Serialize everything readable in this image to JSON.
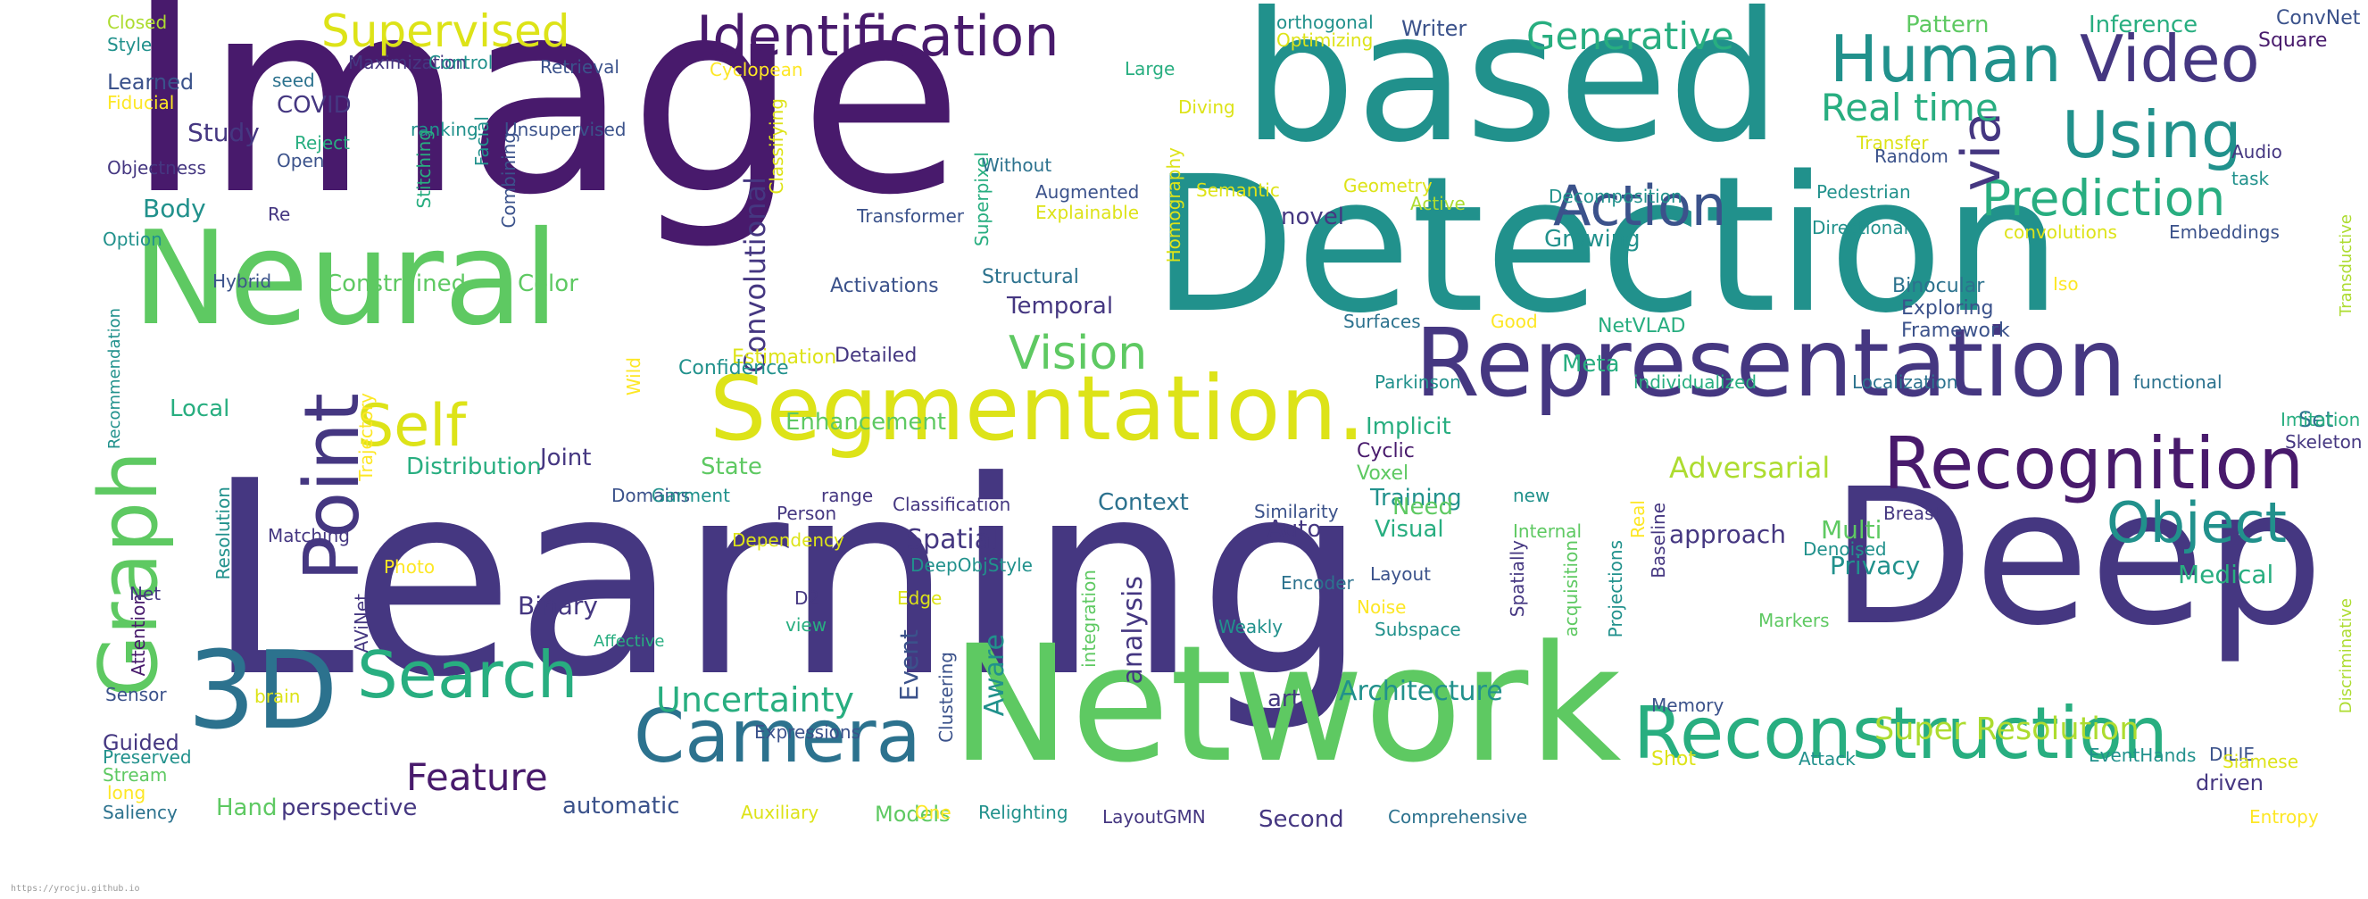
{
  "palette": {
    "p1": "#481a6c",
    "p2": "#453781",
    "p3": "#3b528b",
    "p4": "#2c728e",
    "p5": "#21918c",
    "p6": "#28ae80",
    "p7": "#5ec962",
    "p8": "#addc30",
    "p9": "#dde318",
    "p10": "#fde725"
  },
  "footer": {
    "text": "https://yrocju.github.io"
  },
  "words": [
    {
      "t": "Image",
      "v": false,
      "c": "p1"
    },
    {
      "t": "based",
      "v": false,
      "c": "p5"
    },
    {
      "t": "Detection",
      "v": false,
      "c": "p5"
    },
    {
      "t": "Learning",
      "v": false,
      "c": "p2"
    },
    {
      "t": "Deep",
      "v": false,
      "c": "p2"
    },
    {
      "t": "Network",
      "v": false,
      "c": "p7"
    },
    {
      "t": "Neural",
      "v": false,
      "c": "p7"
    },
    {
      "t": "Representation",
      "v": false,
      "c": "p2"
    },
    {
      "t": "Segmentation.",
      "v": false,
      "c": "p9"
    },
    {
      "t": "Recognition",
      "v": false,
      "c": "p1"
    },
    {
      "t": "Reconstruction",
      "v": false,
      "c": "p6"
    },
    {
      "t": "Human",
      "v": false,
      "c": "p5"
    },
    {
      "t": "Video",
      "v": false,
      "c": "p2"
    },
    {
      "t": "Using",
      "v": false,
      "c": "p5"
    },
    {
      "t": "Identification",
      "v": false,
      "c": "p1"
    },
    {
      "t": "3D",
      "v": false,
      "c": "p4"
    },
    {
      "t": "Graph",
      "v": true,
      "c": "p7"
    },
    {
      "t": "Point",
      "v": true,
      "c": "p2"
    },
    {
      "t": "Camera",
      "v": false,
      "c": "p4"
    },
    {
      "t": "Search",
      "v": false,
      "c": "p6"
    },
    {
      "t": "Object",
      "v": false,
      "c": "p5"
    },
    {
      "t": "Action",
      "v": false,
      "c": "p3"
    },
    {
      "t": "Prediction",
      "v": false,
      "c": "p6"
    },
    {
      "t": "Self",
      "v": false,
      "c": "p9"
    },
    {
      "t": "via",
      "v": true,
      "c": "p2"
    },
    {
      "t": "Vision",
      "v": false,
      "c": "p7"
    },
    {
      "t": "Real time",
      "v": false,
      "c": "p6"
    },
    {
      "t": "Generative",
      "v": false,
      "c": "p6"
    },
    {
      "t": "Supervised",
      "v": false,
      "c": "p9"
    },
    {
      "t": "Feature",
      "v": false,
      "c": "p1"
    },
    {
      "t": "Uncertainty",
      "v": false,
      "c": "p6"
    },
    {
      "t": "Super Resolution",
      "v": false,
      "c": "p8"
    },
    {
      "t": "Convolutional",
      "v": true,
      "c": "p2"
    },
    {
      "t": "analysis",
      "v": true,
      "c": "p2"
    },
    {
      "t": "Aware",
      "v": true,
      "c": "p5"
    },
    {
      "t": "Event",
      "v": true,
      "c": "p3"
    },
    {
      "t": "Adversarial",
      "v": false,
      "c": "p8"
    },
    {
      "t": "Spatial",
      "v": false,
      "c": "p2"
    },
    {
      "t": "Architecture",
      "v": false,
      "c": "p5"
    },
    {
      "t": "Medical",
      "v": false,
      "c": "p6"
    },
    {
      "t": "Multi",
      "v": false,
      "c": "p7"
    },
    {
      "t": "Privacy",
      "v": false,
      "c": "p5"
    },
    {
      "t": "approach",
      "v": false,
      "c": "p2"
    },
    {
      "t": "Pattern",
      "v": false,
      "c": "p7"
    },
    {
      "t": "Inference",
      "v": false,
      "c": "p6"
    },
    {
      "t": "ConvNet",
      "v": false,
      "c": "p3"
    },
    {
      "t": "Square",
      "v": false,
      "c": "p1"
    },
    {
      "t": "Writer",
      "v": false,
      "c": "p3"
    },
    {
      "t": "orthogonal",
      "v": false,
      "c": "p5"
    },
    {
      "t": "Optimizing",
      "v": false,
      "c": "p9"
    },
    {
      "t": "Closed",
      "v": false,
      "c": "p8"
    },
    {
      "t": "Style",
      "v": false,
      "c": "p5"
    },
    {
      "t": "Learned",
      "v": false,
      "c": "p3"
    },
    {
      "t": "Fiducial",
      "v": false,
      "c": "p10"
    },
    {
      "t": "COVID",
      "v": false,
      "c": "p2"
    },
    {
      "t": "Study",
      "v": false,
      "c": "p2"
    },
    {
      "t": "Objectness",
      "v": false,
      "c": "p2"
    },
    {
      "t": "Body",
      "v": false,
      "c": "p5"
    },
    {
      "t": "Option",
      "v": false,
      "c": "p5"
    },
    {
      "t": "Hybrid",
      "v": false,
      "c": "p3"
    },
    {
      "t": "Recommendation",
      "v": true,
      "c": "p5"
    },
    {
      "t": "Local",
      "v": false,
      "c": "p6"
    },
    {
      "t": "Constrained",
      "v": false,
      "c": "p7"
    },
    {
      "t": "Color",
      "v": false,
      "c": "p7"
    },
    {
      "t": "Distribution",
      "v": false,
      "c": "p6"
    },
    {
      "t": "Joint",
      "v": false,
      "c": "p2"
    },
    {
      "t": "State",
      "v": false,
      "c": "p7"
    },
    {
      "t": "Context",
      "v": false,
      "c": "p4"
    },
    {
      "t": "Training",
      "v": false,
      "c": "p5"
    },
    {
      "t": "Implicit",
      "v": false,
      "c": "p6"
    },
    {
      "t": "Enhancement",
      "v": false,
      "c": "p7"
    },
    {
      "t": "Temporal",
      "v": false,
      "c": "p2"
    },
    {
      "t": "Meta",
      "v": false,
      "c": "p6"
    },
    {
      "t": "Set",
      "v": false,
      "c": "p4"
    },
    {
      "t": "novel",
      "v": false,
      "c": "p2"
    },
    {
      "t": "Binary",
      "v": false,
      "c": "p2"
    },
    {
      "t": "Guided",
      "v": false,
      "c": "p2"
    },
    {
      "t": "Hand",
      "v": false,
      "c": "p7"
    },
    {
      "t": "perspective",
      "v": false,
      "c": "p2"
    },
    {
      "t": "automatic",
      "v": false,
      "c": "p3"
    },
    {
      "t": "Models",
      "v": false,
      "c": "p7"
    },
    {
      "t": "Second",
      "v": false,
      "c": "p2"
    },
    {
      "t": "driven",
      "v": false,
      "c": "p2"
    },
    {
      "t": "Auto",
      "v": false,
      "c": "p2"
    },
    {
      "t": "Visual",
      "v": false,
      "c": "p6"
    },
    {
      "t": "Need",
      "v": false,
      "c": "p7"
    },
    {
      "t": "art",
      "v": false,
      "c": "p2"
    },
    {
      "t": "Growing",
      "v": false,
      "c": "p5"
    },
    {
      "t": "Activations",
      "v": false,
      "c": "p3"
    },
    {
      "t": "Structural",
      "v": false,
      "c": "p4"
    },
    {
      "t": "Estimation",
      "v": false,
      "c": "p9"
    },
    {
      "t": "Detailed",
      "v": false,
      "c": "p2"
    },
    {
      "t": "Confidence",
      "v": false,
      "c": "p5"
    },
    {
      "t": "Transformer",
      "v": false,
      "c": "p3"
    },
    {
      "t": "Augmented",
      "v": false,
      "c": "p3"
    },
    {
      "t": "Explainable",
      "v": false,
      "c": "p9"
    },
    {
      "t": "Semantic",
      "v": false,
      "c": "p9"
    },
    {
      "t": "Geometry",
      "v": false,
      "c": "p9"
    },
    {
      "t": "Active",
      "v": false,
      "c": "p8"
    },
    {
      "t": "Decomposition",
      "v": false,
      "c": "p5"
    },
    {
      "t": "Pedestrian",
      "v": false,
      "c": "p5"
    },
    {
      "t": "Transfer",
      "v": false,
      "c": "p9"
    },
    {
      "t": "Random",
      "v": false,
      "c": "p3"
    },
    {
      "t": "Audio",
      "v": false,
      "c": "p2"
    },
    {
      "t": "task",
      "v": false,
      "c": "p5"
    },
    {
      "t": "Directional",
      "v": false,
      "c": "p5"
    },
    {
      "t": "convolutions",
      "v": false,
      "c": "p9"
    },
    {
      "t": "Embeddings",
      "v": false,
      "c": "p3"
    },
    {
      "t": "Binocular",
      "v": false,
      "c": "p4"
    },
    {
      "t": "Exploring",
      "v": false,
      "c": "p3"
    },
    {
      "t": "Framework",
      "v": false,
      "c": "p3"
    },
    {
      "t": "Iso",
      "v": false,
      "c": "p10"
    },
    {
      "t": "Transductive",
      "v": true,
      "c": "p8"
    },
    {
      "t": "Surfaces",
      "v": false,
      "c": "p4"
    },
    {
      "t": "Good",
      "v": false,
      "c": "p10"
    },
    {
      "t": "NetVLAD",
      "v": false,
      "c": "p6"
    },
    {
      "t": "Parkinson",
      "v": false,
      "c": "p5"
    },
    {
      "t": "individualized",
      "v": false,
      "c": "p6"
    },
    {
      "t": "Localization",
      "v": false,
      "c": "p4"
    },
    {
      "t": "functional",
      "v": false,
      "c": "p4"
    },
    {
      "t": "Imitation",
      "v": false,
      "c": "p6"
    },
    {
      "t": "Skeleton",
      "v": false,
      "c": "p2"
    },
    {
      "t": "Cyclic",
      "v": false,
      "c": "p1"
    },
    {
      "t": "Voxel",
      "v": false,
      "c": "p7"
    },
    {
      "t": "new",
      "v": false,
      "c": "p5"
    },
    {
      "t": "Similarity",
      "v": false,
      "c": "p3"
    },
    {
      "t": "Classification",
      "v": false,
      "c": "p2"
    },
    {
      "t": "Domains",
      "v": false,
      "c": "p3"
    },
    {
      "t": "Garment",
      "v": false,
      "c": "p5"
    },
    {
      "t": "range",
      "v": false,
      "c": "p2"
    },
    {
      "t": "Person",
      "v": false,
      "c": "p2"
    },
    {
      "t": "Dependency",
      "v": false,
      "c": "p9"
    },
    {
      "t": "DeepObjStyle",
      "v": false,
      "c": "p5"
    },
    {
      "t": "Layout",
      "v": false,
      "c": "p3"
    },
    {
      "t": "Internal",
      "v": false,
      "c": "p7"
    },
    {
      "t": "Encoder",
      "v": false,
      "c": "p4"
    },
    {
      "t": "Weakly",
      "v": false,
      "c": "p5"
    },
    {
      "t": "Noise",
      "v": false,
      "c": "p10"
    },
    {
      "t": "Subspace",
      "v": false,
      "c": "p5"
    },
    {
      "t": "Denoised",
      "v": false,
      "c": "p5"
    },
    {
      "t": "Breast",
      "v": false,
      "c": "p2"
    },
    {
      "t": "Baseline",
      "v": true,
      "c": "p2"
    },
    {
      "t": "Real",
      "v": true,
      "c": "p10"
    },
    {
      "t": "Markers",
      "v": false,
      "c": "p7"
    },
    {
      "t": "Discriminative",
      "v": true,
      "c": "p8"
    },
    {
      "t": "DILIE",
      "v": false,
      "c": "p3"
    },
    {
      "t": "Siamese",
      "v": false,
      "c": "p9"
    },
    {
      "t": "EventHands",
      "v": false,
      "c": "p5"
    },
    {
      "t": "Attack",
      "v": false,
      "c": "p5"
    },
    {
      "t": "Entropy",
      "v": false,
      "c": "p10"
    },
    {
      "t": "Memory",
      "v": false,
      "c": "p3"
    },
    {
      "t": "Shot",
      "v": false,
      "c": "p9"
    },
    {
      "t": "Projections",
      "v": true,
      "c": "p5"
    },
    {
      "t": "acquisition",
      "v": true,
      "c": "p7"
    },
    {
      "t": "Spatially",
      "v": true,
      "c": "p2"
    },
    {
      "t": "integration",
      "v": true,
      "c": "p7"
    },
    {
      "t": "view",
      "v": false,
      "c": "p6"
    },
    {
      "t": "Edge",
      "v": false,
      "c": "p9"
    },
    {
      "t": "D2",
      "v": false,
      "c": "p2"
    },
    {
      "t": "Clustering",
      "v": true,
      "c": "p3"
    },
    {
      "t": "Expressions",
      "v": false,
      "c": "p3"
    },
    {
      "t": "Relighting",
      "v": false,
      "c": "p5"
    },
    {
      "t": "LayoutGMN",
      "v": false,
      "c": "p2"
    },
    {
      "t": "Comprehensive",
      "v": false,
      "c": "p4"
    },
    {
      "t": "Auxiliary",
      "v": false,
      "c": "p9"
    },
    {
      "t": "One",
      "v": false,
      "c": "p10"
    },
    {
      "t": "Saliency",
      "v": false,
      "c": "p4"
    },
    {
      "t": "long",
      "v": false,
      "c": "p10"
    },
    {
      "t": "Stream",
      "v": false,
      "c": "p7"
    },
    {
      "t": "Preserved",
      "v": false,
      "c": "p5"
    },
    {
      "t": "Sensor",
      "v": false,
      "c": "p3"
    },
    {
      "t": "brain",
      "v": false,
      "c": "p9"
    },
    {
      "t": "Affective",
      "v": false,
      "c": "p6"
    },
    {
      "t": "AViNet",
      "v": true,
      "c": "p2"
    },
    {
      "t": "Photo",
      "v": false,
      "c": "p10"
    },
    {
      "t": "Attention",
      "v": true,
      "c": "p1"
    },
    {
      "t": "Net",
      "v": false,
      "c": "p2"
    },
    {
      "t": "Matching",
      "v": false,
      "c": "p2"
    },
    {
      "t": "Resolution",
      "v": true,
      "c": "p5"
    },
    {
      "t": "Trajectory",
      "v": true,
      "c": "p10"
    },
    {
      "t": "Wild",
      "v": true,
      "c": "p10"
    },
    {
      "t": "Re",
      "v": false,
      "c": "p2"
    },
    {
      "t": "Reject",
      "v": false,
      "c": "p6"
    },
    {
      "t": "Open",
      "v": false,
      "c": "p3"
    },
    {
      "t": "ranking",
      "v": false,
      "c": "p5"
    },
    {
      "t": "Stitching",
      "v": true,
      "c": "p6"
    },
    {
      "t": "Facial",
      "v": true,
      "c": "p5"
    },
    {
      "t": "Combining",
      "v": true,
      "c": "p3"
    },
    {
      "t": "Unsupervised",
      "v": false,
      "c": "p3"
    },
    {
      "t": "Classifying",
      "v": true,
      "c": "p9"
    },
    {
      "t": "Superpixel",
      "v": true,
      "c": "p6"
    },
    {
      "t": "Without",
      "v": false,
      "c": "p4"
    },
    {
      "t": "seed",
      "v": false,
      "c": "p4"
    },
    {
      "t": "Maximization",
      "v": false,
      "c": "p2"
    },
    {
      "t": "Control",
      "v": false,
      "c": "p5"
    },
    {
      "t": "Retrieval",
      "v": false,
      "c": "p3"
    },
    {
      "t": "Cyclopean",
      "v": false,
      "c": "p10"
    },
    {
      "t": "Large",
      "v": false,
      "c": "p6"
    },
    {
      "t": "Diving",
      "v": false,
      "c": "p9"
    },
    {
      "t": "Homography",
      "v": true,
      "c": "p9"
    }
  ]
}
